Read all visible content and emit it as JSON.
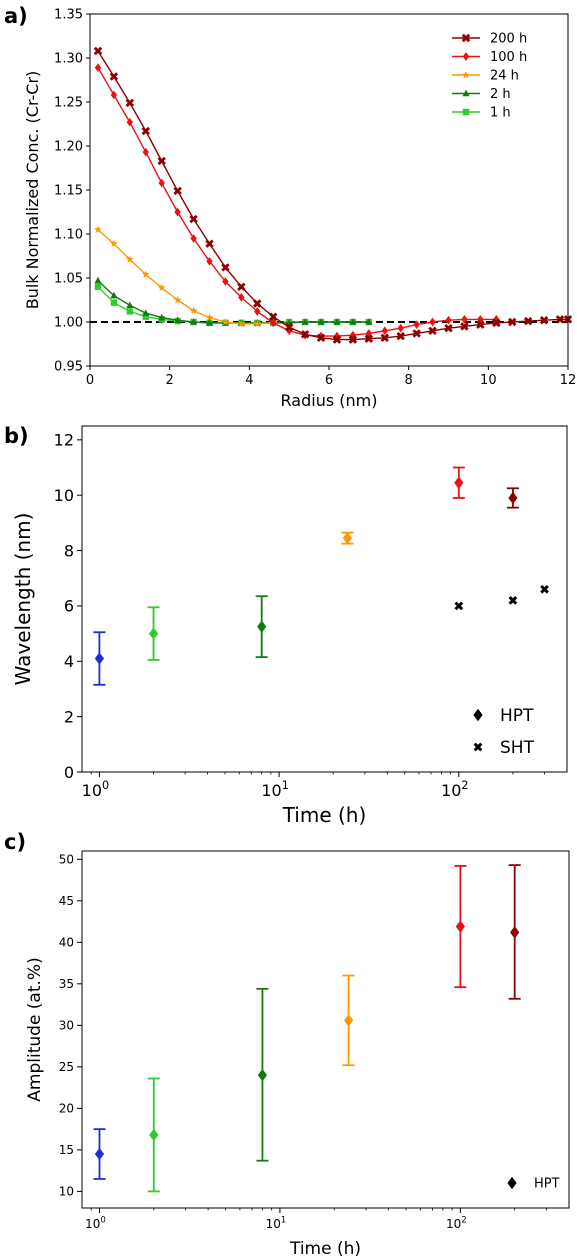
{
  "chart_data": [
    {
      "panel": "a)",
      "type": "line",
      "xlabel": "Radius (nm)",
      "ylabel": "Bulk Normalized Conc. (Cr-Cr)",
      "xlim": [
        0,
        12
      ],
      "ylim": [
        0.95,
        1.35
      ],
      "xticks": [
        0,
        2,
        4,
        6,
        8,
        10,
        12
      ],
      "yticks": [
        0.95,
        1.0,
        1.05,
        1.1,
        1.15,
        1.2,
        1.25,
        1.3,
        1.35
      ],
      "ytick_labels": [
        "0.95",
        "1.00",
        "1.05",
        "1.10",
        "1.15",
        "1.20",
        "1.25",
        "1.30",
        "1.35"
      ],
      "reference_line": {
        "y": 1.0,
        "style": "dashed",
        "color": "#000000"
      },
      "legend": "top-right",
      "series": [
        {
          "name": "200 h",
          "color": "#8b0000",
          "marker": "x",
          "x": [
            0.2,
            0.6,
            1.0,
            1.4,
            1.8,
            2.2,
            2.6,
            3.0,
            3.4,
            3.8,
            4.2,
            4.6,
            5.0,
            5.4,
            5.8,
            6.2,
            6.6,
            7.0,
            7.4,
            7.8,
            8.2,
            8.6,
            9.0,
            9.4,
            9.8,
            10.2,
            10.6,
            11.0,
            11.4,
            11.8,
            12.0
          ],
          "y": [
            1.308,
            1.279,
            1.249,
            1.217,
            1.183,
            1.149,
            1.117,
            1.089,
            1.062,
            1.04,
            1.021,
            1.006,
            0.994,
            0.986,
            0.982,
            0.98,
            0.98,
            0.981,
            0.982,
            0.984,
            0.987,
            0.99,
            0.993,
            0.995,
            0.997,
            0.999,
            1.0,
            1.001,
            1.002,
            1.003,
            1.003
          ]
        },
        {
          "name": "100 h",
          "color": "#ee1111",
          "marker": "diamond",
          "x": [
            0.2,
            0.6,
            1.0,
            1.4,
            1.8,
            2.2,
            2.6,
            3.0,
            3.4,
            3.8,
            4.2,
            4.6,
            5.0,
            5.4,
            5.8,
            6.2,
            6.6,
            7.0,
            7.4,
            7.8,
            8.2,
            8.6,
            9.0,
            9.4,
            9.8,
            10.2
          ],
          "y": [
            1.289,
            1.258,
            1.227,
            1.193,
            1.158,
            1.125,
            1.095,
            1.069,
            1.046,
            1.028,
            1.012,
            0.999,
            0.99,
            0.985,
            0.984,
            0.984,
            0.985,
            0.987,
            0.99,
            0.993,
            0.997,
            1.0,
            1.002,
            1.003,
            1.003,
            1.003
          ]
        },
        {
          "name": "24  h",
          "color": "#ff9900",
          "marker": "star",
          "x": [
            0.2,
            0.6,
            1.0,
            1.4,
            1.8,
            2.2,
            2.6,
            3.0,
            3.4,
            3.8,
            4.2,
            4.6
          ],
          "y": [
            1.105,
            1.089,
            1.071,
            1.054,
            1.039,
            1.025,
            1.013,
            1.005,
            1.0,
            0.998,
            0.998,
            0.999
          ]
        },
        {
          "name": "2 h",
          "color": "#137a13",
          "marker": "triangle",
          "x": [
            0.2,
            0.6,
            1.0,
            1.4,
            1.8,
            2.2,
            2.6,
            3.0,
            3.4,
            3.8,
            4.2,
            4.6,
            5.0,
            5.4,
            5.8,
            6.2,
            6.6,
            7.0
          ],
          "y": [
            1.047,
            1.03,
            1.019,
            1.01,
            1.005,
            1.002,
            1.0,
            0.999,
            0.999,
            0.999,
            0.999,
            0.999,
            0.999,
            1.0,
            1.0,
            1.0,
            1.0,
            1.0
          ]
        },
        {
          "name": "1 h",
          "color": "#2ecc2e",
          "marker": "square",
          "x": [
            0.2,
            0.6,
            1.0,
            1.4,
            1.8,
            2.2,
            2.6,
            3.0,
            3.4,
            3.8,
            4.2,
            4.6,
            5.0,
            5.4,
            5.8,
            6.2,
            6.6,
            7.0
          ],
          "y": [
            1.04,
            1.022,
            1.012,
            1.006,
            1.003,
            1.001,
            1.0,
            0.999,
            0.999,
            0.999,
            0.999,
            0.999,
            1.0,
            1.0,
            1.0,
            1.0,
            1.0,
            1.0
          ]
        }
      ]
    },
    {
      "panel": "b)",
      "type": "scatter",
      "xlabel": "Time (h)",
      "ylabel": "Wavelength (nm)",
      "xscale": "log",
      "xlim": [
        0.8,
        400
      ],
      "ylim": [
        0,
        12.5
      ],
      "xticks": [
        1,
        10,
        100
      ],
      "xtick_labels": [
        {
          "base": "10",
          "exp": "0"
        },
        {
          "base": "10",
          "exp": "1"
        },
        {
          "base": "10",
          "exp": "2"
        }
      ],
      "yticks": [
        0,
        2,
        4,
        6,
        8,
        10,
        12
      ],
      "legend": "bottom-right",
      "series": [
        {
          "name": "HPT",
          "marker": "diamond",
          "legend_color": "#000000",
          "points": [
            {
              "x": 1,
              "y": 4.1,
              "err": 0.95,
              "color": "#1f2fd0"
            },
            {
              "x": 2,
              "y": 5.0,
              "err": 0.95,
              "color": "#2ecc2e"
            },
            {
              "x": 8,
              "y": 5.25,
              "err": 1.1,
              "color": "#137a13"
            },
            {
              "x": 24,
              "y": 8.45,
              "err": 0.2,
              "color": "#ff9900"
            },
            {
              "x": 100,
              "y": 10.45,
              "err": 0.55,
              "color": "#ee1111"
            },
            {
              "x": 200,
              "y": 9.9,
              "err": 0.35,
              "color": "#8b0000"
            }
          ]
        },
        {
          "name": "SHT",
          "marker": "x",
          "legend_color": "#000000",
          "points": [
            {
              "x": 100,
              "y": 6.0,
              "color": "#000000"
            },
            {
              "x": 200,
              "y": 6.2,
              "color": "#000000"
            },
            {
              "x": 300,
              "y": 6.6,
              "color": "#000000"
            }
          ]
        }
      ]
    },
    {
      "panel": "c)",
      "type": "scatter",
      "xlabel": "Time (h)",
      "ylabel": "Amplitude (at.%)",
      "xscale": "log",
      "xlim": [
        0.8,
        400
      ],
      "ylim": [
        8,
        51
      ],
      "xticks": [
        1,
        10,
        100
      ],
      "xtick_labels": [
        {
          "base": "10",
          "exp": "0"
        },
        {
          "base": "10",
          "exp": "1"
        },
        {
          "base": "10",
          "exp": "2"
        }
      ],
      "yticks": [
        10,
        15,
        20,
        25,
        30,
        35,
        40,
        45,
        50
      ],
      "legend": "bottom-right",
      "series": [
        {
          "name": "HPT",
          "marker": "diamond",
          "legend_color": "#000000",
          "points": [
            {
              "x": 1,
              "y": 14.5,
              "lo": 11.5,
              "hi": 17.5,
              "color": "#1f2fd0"
            },
            {
              "x": 2,
              "y": 16.8,
              "lo": 10.0,
              "hi": 23.6,
              "color": "#2ecc2e"
            },
            {
              "x": 8,
              "y": 24.0,
              "lo": 13.7,
              "hi": 34.4,
              "color": "#137a13"
            },
            {
              "x": 24,
              "y": 30.6,
              "lo": 25.2,
              "hi": 36.0,
              "color": "#ff9900"
            },
            {
              "x": 100,
              "y": 41.9,
              "lo": 34.6,
              "hi": 49.2,
              "color": "#ee1111"
            },
            {
              "x": 200,
              "y": 41.2,
              "lo": 33.2,
              "hi": 49.3,
              "color": "#8b0000"
            }
          ]
        }
      ]
    }
  ]
}
